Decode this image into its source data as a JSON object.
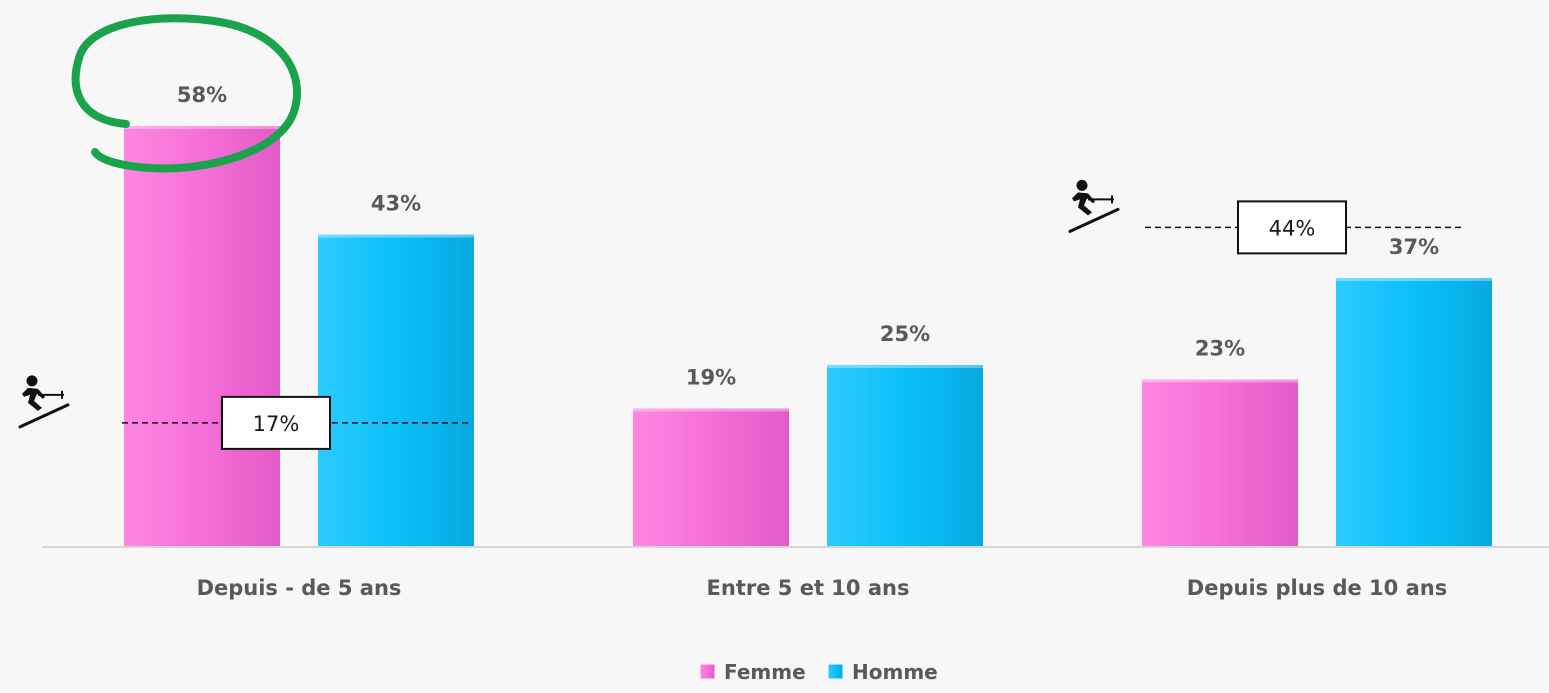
{
  "chart_data": {
    "type": "bar",
    "categories": [
      "Depuis - de 5 ans",
      "Entre 5 et 10 ans",
      "Depuis plus de 10 ans"
    ],
    "series": [
      {
        "name": "Femme",
        "values": [
          58,
          19,
          23
        ],
        "color": "#f56fd8"
      },
      {
        "name": "Homme",
        "values": [
          43,
          25,
          37
        ],
        "color": "#0cbff8"
      }
    ],
    "value_suffix": "%",
    "ylim": [
      0,
      60
    ],
    "grid": false,
    "legend_position": "bottom-center",
    "title": "",
    "xlabel": "",
    "ylabel": "",
    "reference_lines": [
      {
        "category_index": 0,
        "value": 17,
        "label": "17%",
        "icon": "skier-icon"
      },
      {
        "category_index": 2,
        "value": 44,
        "label": "44%",
        "icon": "skier-icon"
      }
    ],
    "highlight": {
      "category_index": 0,
      "series_index": 0,
      "color": "#1aa34a",
      "shape": "hand-drawn-circle"
    }
  }
}
